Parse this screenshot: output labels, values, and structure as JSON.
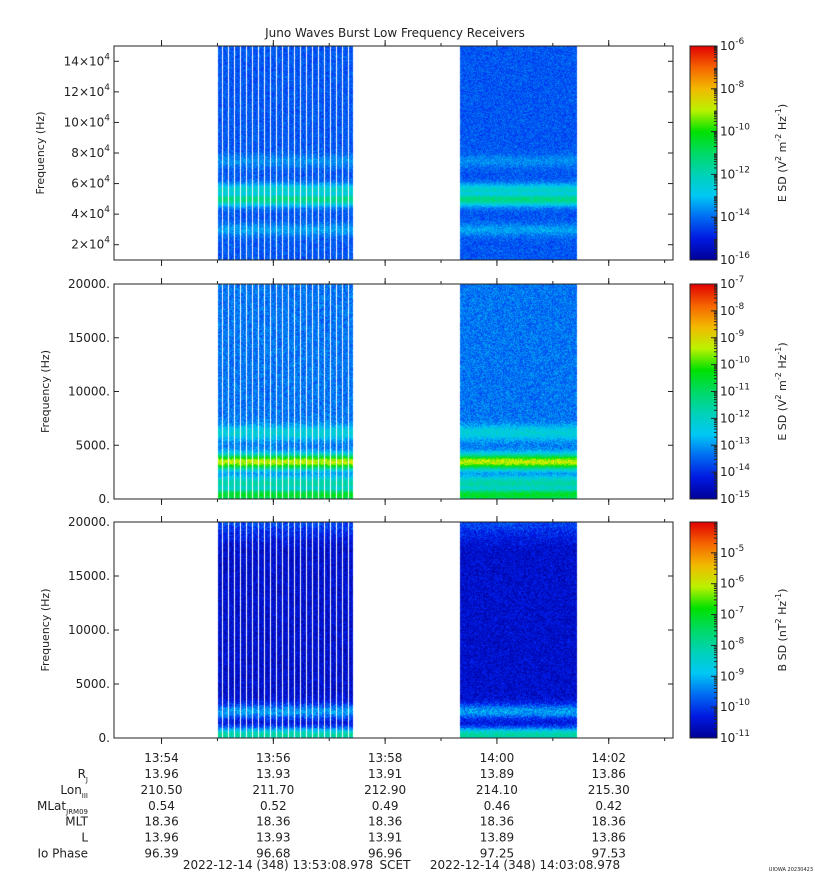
{
  "chart_data": [
    {
      "type": "heatmap",
      "title": "Juno Waves Burst Low Frequency Receivers",
      "ylabel": "Frequency (Hz)",
      "y_ticks": [
        "2x10^4",
        "4x10^4",
        "6x10^4",
        "8x10^4",
        "10x10^4",
        "12x10^4",
        "14x10^4"
      ],
      "ylim": [
        10000,
        150000
      ],
      "data_segments": [
        [
          "13:55:00",
          "13:57:25"
        ],
        [
          "13:59:20",
          "14:01:25"
        ]
      ],
      "bands": [
        {
          "freq": 50000,
          "level": -11.3
        },
        {
          "freq": 56000,
          "level": -12.3
        },
        {
          "freq": 75000,
          "level": -13.6
        },
        {
          "freq": 30000,
          "level": -13.4
        }
      ],
      "background_level": -14.2,
      "colorbar": {
        "label": "E SD (V^2 m^-2 Hz^-1)",
        "min_exp": -16,
        "max_exp": -6,
        "tick_labels": [
          "10^-6",
          "10^-8",
          "10^-10",
          "10^-12",
          "10^-14",
          "10^-16"
        ]
      }
    },
    {
      "type": "heatmap",
      "ylabel": "Frequency (Hz)",
      "y_ticks": [
        "0.",
        "5000.",
        "10000.",
        "15000.",
        "20000."
      ],
      "ylim": [
        0,
        20000
      ],
      "data_segments": [
        [
          "13:55:00",
          "13:57:25"
        ],
        [
          "13:59:20",
          "14:01:25"
        ]
      ],
      "bands": [
        {
          "freq": 3500,
          "level": -9.3
        },
        {
          "freq": 6200,
          "level": -12.2
        },
        {
          "freq": 1500,
          "level": -11.6
        },
        {
          "freq": 400,
          "level": -10.5
        }
      ],
      "background_level": -13.3,
      "colorbar": {
        "label": "E SD (V^2 m^-2 Hz^-1)",
        "min_exp": -15,
        "max_exp": -7,
        "tick_labels": [
          "10^-7",
          "10^-8",
          "10^-9",
          "10^-10",
          "10^-11",
          "10^-12",
          "10^-13",
          "10^-14",
          "10^-15"
        ]
      }
    },
    {
      "type": "heatmap",
      "ylabel": "Frequency (Hz)",
      "y_ticks": [
        "0.",
        "5000.",
        "10000.",
        "15000.",
        "20000."
      ],
      "ylim": [
        0,
        20000
      ],
      "data_segments": [
        [
          "13:55:00",
          "13:57:25"
        ],
        [
          "13:59:20",
          "14:01:25"
        ]
      ],
      "bands": [
        {
          "freq": 300,
          "level": -8.0
        },
        {
          "freq": 2500,
          "level": -9.2
        }
      ],
      "background_level": -10.5,
      "colorbar": {
        "label": "B SD (nT^2 Hz^-1)",
        "min_exp": -11,
        "max_exp": -4,
        "tick_labels": [
          "10^-5",
          "10^-6",
          "10^-7",
          "10^-8",
          "10^-9",
          "10^-10",
          "10^-11"
        ]
      }
    }
  ],
  "x_axis": {
    "range": [
      "13:53:08.978",
      "14:03:08.978"
    ],
    "tick_labels": [
      "13:54",
      "13:56",
      "13:58",
      "14:00",
      "14:02"
    ]
  },
  "ephemeris": [
    {
      "label": "R",
      "sub": "J",
      "values": [
        "13.96",
        "13.93",
        "13.91",
        "13.89",
        "13.86"
      ]
    },
    {
      "label": "Lon",
      "sub": "III",
      "values": [
        "210.50",
        "211.70",
        "212.90",
        "214.10",
        "215.30"
      ]
    },
    {
      "label": "MLat",
      "sub": "JRM09",
      "values": [
        "0.54",
        "0.52",
        "0.49",
        "0.46",
        "0.42"
      ]
    },
    {
      "label": "MLT",
      "sub": "",
      "values": [
        "18.36",
        "18.36",
        "18.36",
        "18.36",
        "18.36"
      ]
    },
    {
      "label": "L",
      "sub": "",
      "values": [
        "13.96",
        "13.93",
        "13.91",
        "13.89",
        "13.86"
      ]
    },
    {
      "label": "Io Phase",
      "sub": "",
      "values": [
        "96.39",
        "96.68",
        "96.96",
        "97.25",
        "97.53"
      ]
    }
  ],
  "footer": {
    "start": "2022-12-14 (348) 13:53:08.978",
    "scet": "SCET",
    "end": "2022-12-14 (348) 14:03:08.978",
    "stamp": "UIOWA 20230423"
  }
}
